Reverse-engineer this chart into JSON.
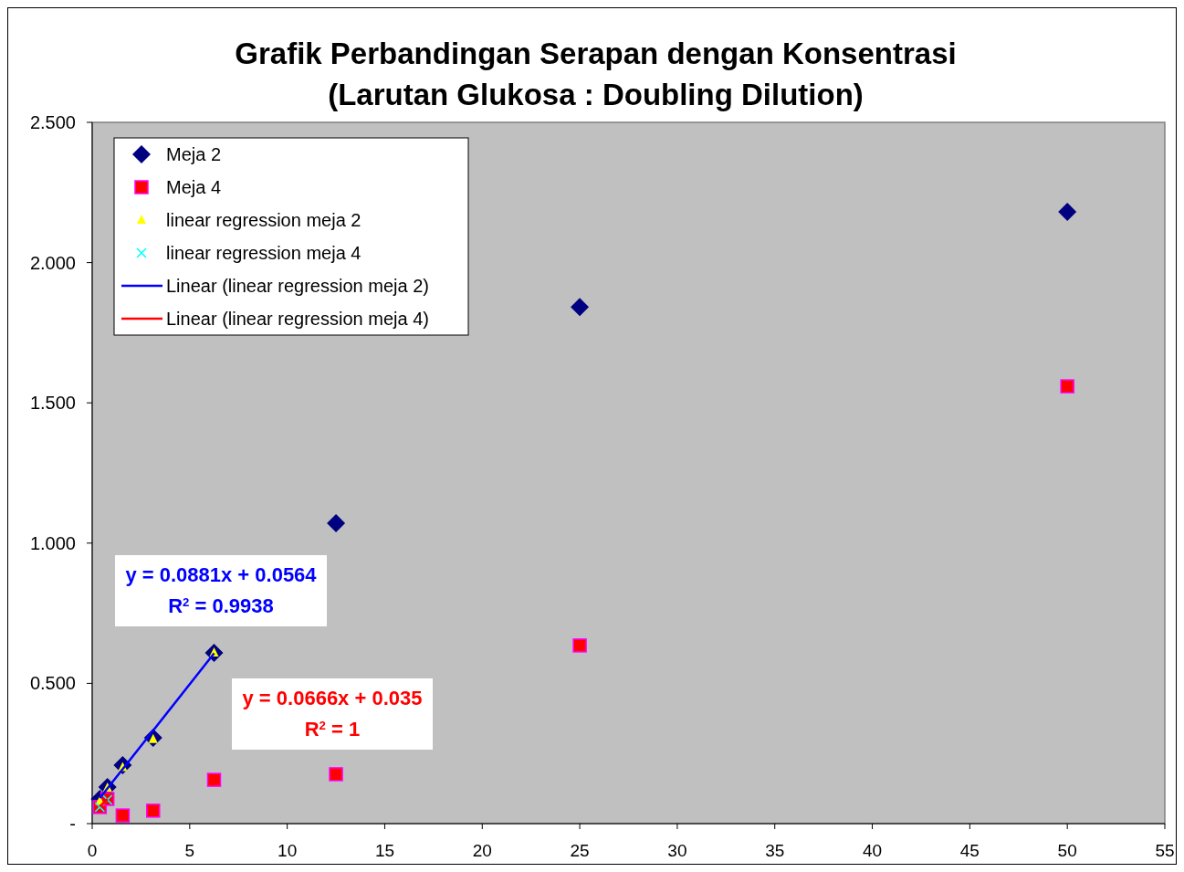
{
  "chart_data": {
    "type": "scatter",
    "title": "Grafik Perbandingan Serapan dengan Konsentrasi\n(Larutan Glukosa : Doubling Dilution)",
    "x": [
      0.390625,
      0.78125,
      1.5625,
      3.125,
      6.25,
      12.5,
      25,
      50
    ],
    "series": [
      {
        "name": "Meja 2",
        "color": "#000080",
        "marker": "diamond",
        "values": [
          0.088,
          0.13,
          0.208,
          0.306,
          0.609,
          1.071,
          1.842,
          2.181
        ]
      },
      {
        "name": "Meja 4",
        "color": "#ff0000",
        "marker": "square",
        "values": [
          0.059,
          0.088,
          0.029,
          0.046,
          0.156,
          0.176,
          0.635,
          1.559
        ]
      },
      {
        "name": "linear regression meja 2",
        "color": "#ffff00",
        "marker": "triangle",
        "x": [
          0.390625,
          0.78125,
          1.5625,
          3.125,
          6.25
        ],
        "values": [
          0.08,
          0.127,
          0.2,
          0.3,
          0.609
        ]
      },
      {
        "name": "linear regression meja 4",
        "color": "#00ffff",
        "marker": "cross",
        "x": [
          0.390625,
          0.78125
        ],
        "values": [
          0.059,
          0.085
        ]
      },
      {
        "name": "Linear (linear regression meja 2)",
        "type": "line",
        "color": "#0000ff",
        "marker": "none",
        "x": [
          0.390625,
          6.25
        ],
        "values": [
          0.091,
          0.607
        ]
      },
      {
        "name": "Linear (linear regression meja 4)",
        "type": "line",
        "color": "#ff0000",
        "marker": "none",
        "x": [
          0.390625,
          0.78125
        ],
        "values": [
          0.061,
          0.087
        ]
      }
    ],
    "annotations": [
      "y = 0.0881x + 0.0564\nR$^{2}$ = 0.9938",
      "y = 0.0666x + 0.035\nR$^{2}$ = 1"
    ],
    "xlim": [
      0,
      55
    ],
    "xticks": [
      0,
      5,
      10,
      15,
      20,
      25,
      30,
      35,
      40,
      45,
      50,
      55
    ],
    "ylim": [
      0,
      2.5
    ],
    "yticks": [
      {
        "value": 0,
        "label": "-"
      },
      {
        "value": 0.5,
        "label": "0.500"
      },
      {
        "value": 1,
        "label": "1.000"
      },
      {
        "value": 1.5,
        "label": "1.500"
      },
      {
        "value": 2,
        "label": "2.000"
      },
      {
        "value": 2.5,
        "label": "2.500"
      }
    ],
    "grid": false,
    "legend": "top left"
  }
}
